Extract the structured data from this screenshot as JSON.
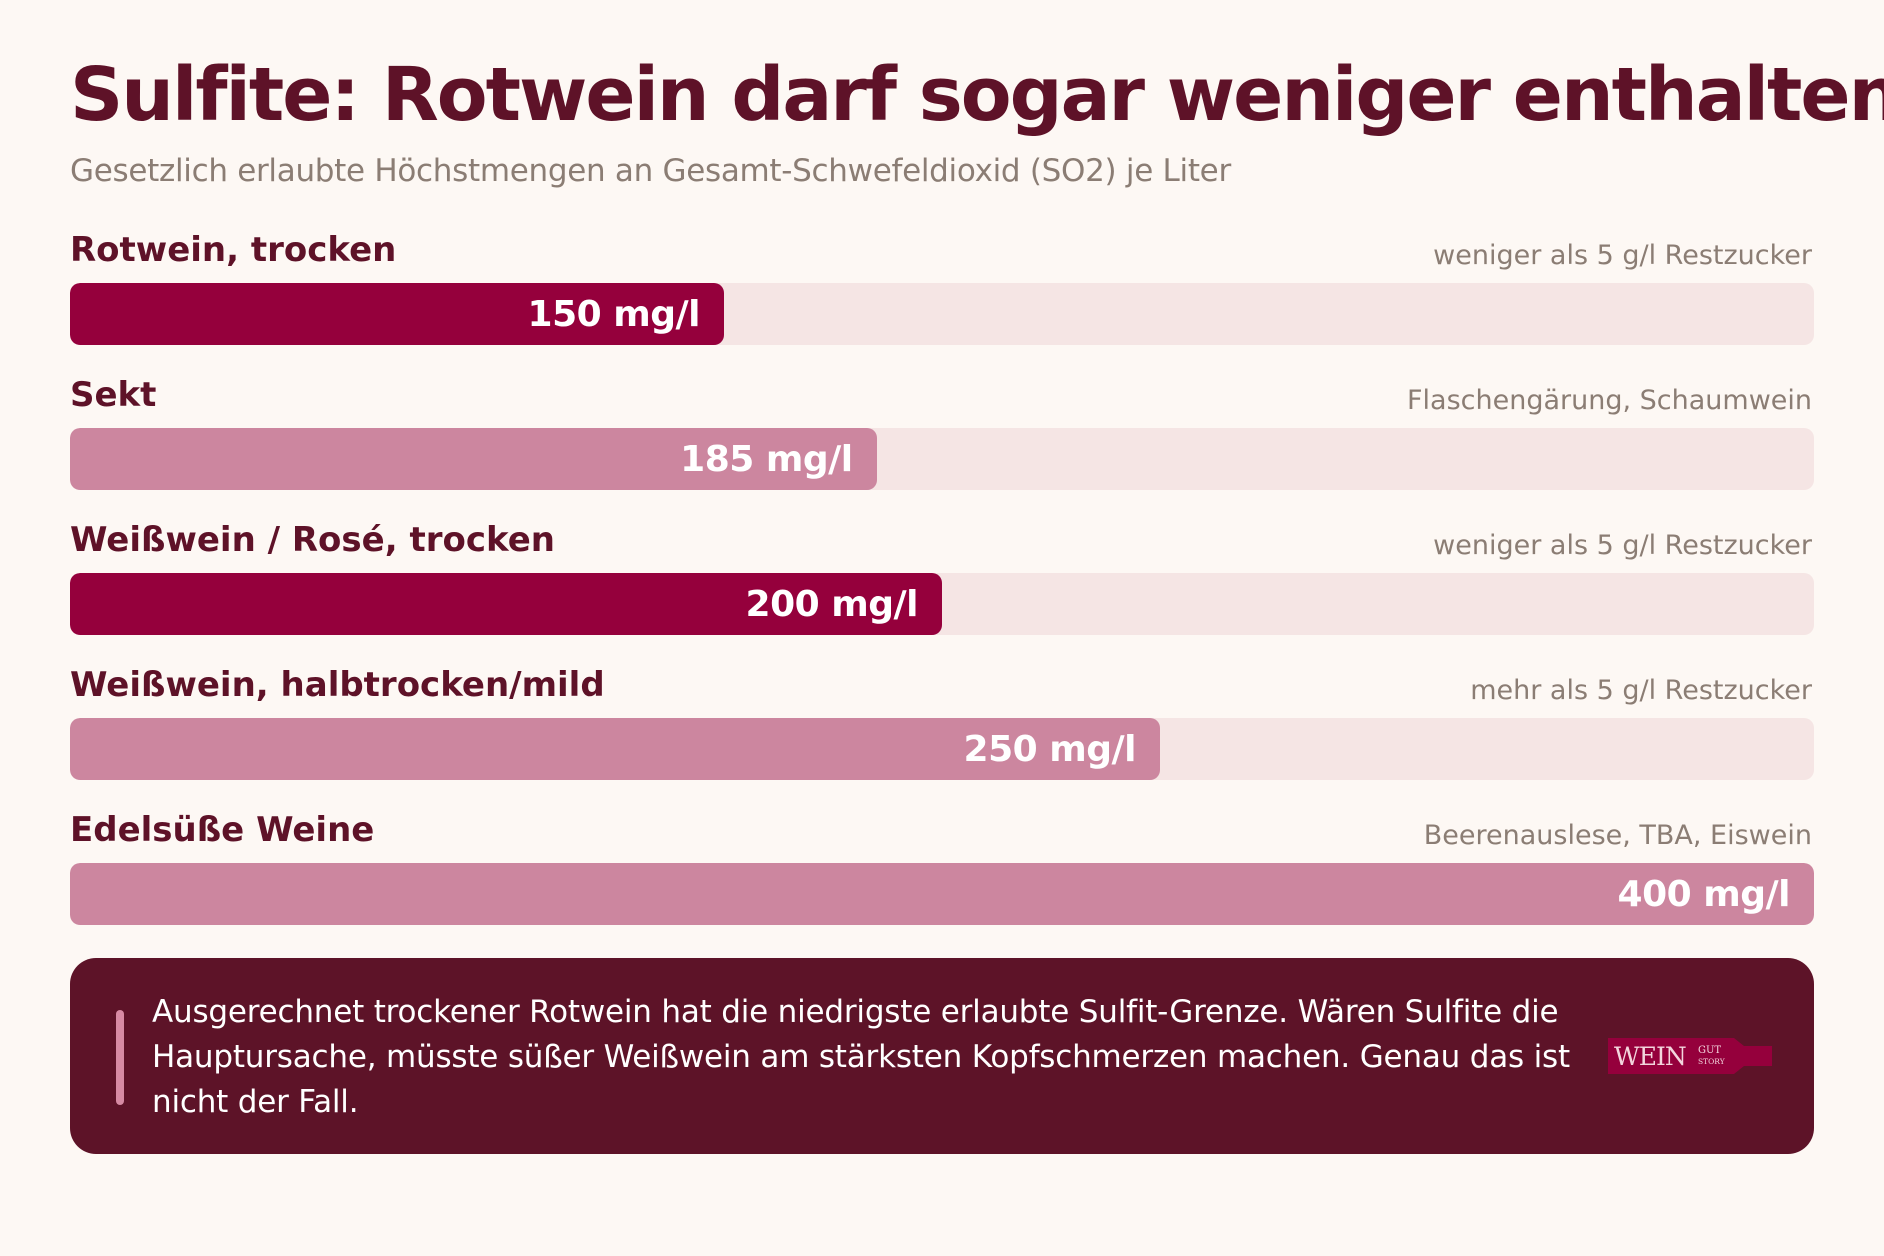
{
  "header": {
    "title": "Sulfite: Rotwein darf sogar weniger enthalten",
    "subtitle": "Gesetzlich erlaubte Höchstmengen an Gesamt-Schwefeldioxid (SO2) je Liter"
  },
  "chart_data": {
    "type": "bar",
    "orientation": "horizontal",
    "unit": "mg/l",
    "xlim": [
      0,
      400
    ],
    "grid": false,
    "categories": [
      "Rotwein, trocken",
      "Sekt",
      "Weißwein / Rosé, trocken",
      "Weißwein, halbtrocken/mild",
      "Edelsüße Weine"
    ],
    "notes": [
      "weniger als 5 g/l Restzucker",
      "Flaschengärung, Schaumwein",
      "weniger als 5 g/l Restzucker",
      "mehr als 5 g/l Restzucker",
      "Beerenauslese, TBA, Eiswein"
    ],
    "values": [
      150,
      185,
      200,
      250,
      400
    ],
    "value_labels": [
      "150 mg/l",
      "185 mg/l",
      "200 mg/l",
      "250 mg/l",
      "400 mg/l"
    ],
    "highlighted": [
      true,
      false,
      true,
      false,
      false
    ],
    "colors": {
      "highlight": "#95003c",
      "normal": "#cc869f",
      "track": "#f5e5e4"
    }
  },
  "callout": {
    "text": "Ausgerechnet trockener Rotwein hat die niedrigste erlaubte Sulfit-Grenze. Wären Sulfite die Hauptursache, müsste süßer Weißwein am stärksten Kopfschmerzen machen. Genau das ist nicht der Fall.",
    "logo_text": "WEINGUT STORY"
  },
  "colors": {
    "background": "#fdf8f4",
    "title": "#5e1228",
    "muted": "#8b7d74",
    "callout_bg": "#5d1328",
    "callout_accent": "#d68aa3"
  }
}
